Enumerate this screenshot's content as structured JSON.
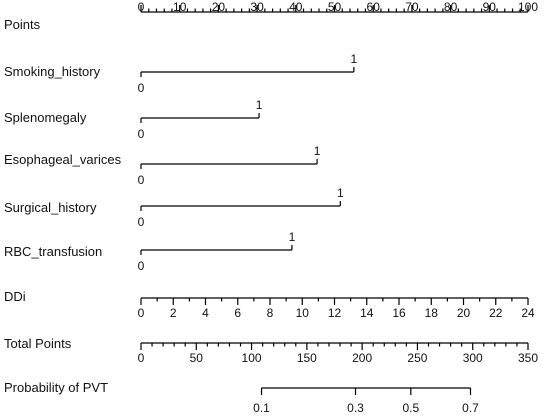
{
  "chart_data": {
    "type": "nomogram",
    "rows": [
      {
        "label": "Points",
        "kind": "axis",
        "min": 0,
        "max": 100,
        "major_ticks": [
          0,
          10,
          20,
          30,
          40,
          50,
          60,
          70,
          80,
          90,
          100
        ],
        "minor_step": 2,
        "labels_above": true
      },
      {
        "label": "Smoking_history",
        "kind": "binary",
        "values": [
          0,
          1
        ],
        "points": [
          0,
          55
        ]
      },
      {
        "label": "Splenomegaly",
        "kind": "binary",
        "values": [
          0,
          1
        ],
        "points": [
          0,
          30.5
        ]
      },
      {
        "label": "Esophageal_varices",
        "kind": "binary",
        "values": [
          0,
          1
        ],
        "points": [
          0,
          45.5
        ]
      },
      {
        "label": "Surgical_history",
        "kind": "binary",
        "values": [
          0,
          1
        ],
        "points": [
          0,
          51.5
        ]
      },
      {
        "label": "RBC_transfusion",
        "kind": "binary",
        "values": [
          0,
          1
        ],
        "points": [
          0,
          39
        ]
      },
      {
        "label": "DDi",
        "kind": "axis",
        "min": 0,
        "max": 24,
        "major_ticks": [
          0,
          2,
          4,
          6,
          8,
          10,
          12,
          14,
          16,
          18,
          20,
          22,
          24
        ],
        "minor_step": 1
      },
      {
        "label": "Total Points",
        "kind": "axis",
        "min": 0,
        "max": 350,
        "major_ticks": [
          0,
          50,
          100,
          150,
          200,
          250,
          300,
          350
        ],
        "minor_step": 10
      },
      {
        "label": "Probability of PVT",
        "kind": "probability",
        "ticks": [
          {
            "value": 0.1,
            "total_points": 109
          },
          {
            "value": 0.3,
            "total_points": 194
          },
          {
            "value": 0.5,
            "total_points": 244
          },
          {
            "value": 0.7,
            "total_points": 298
          }
        ]
      }
    ]
  }
}
